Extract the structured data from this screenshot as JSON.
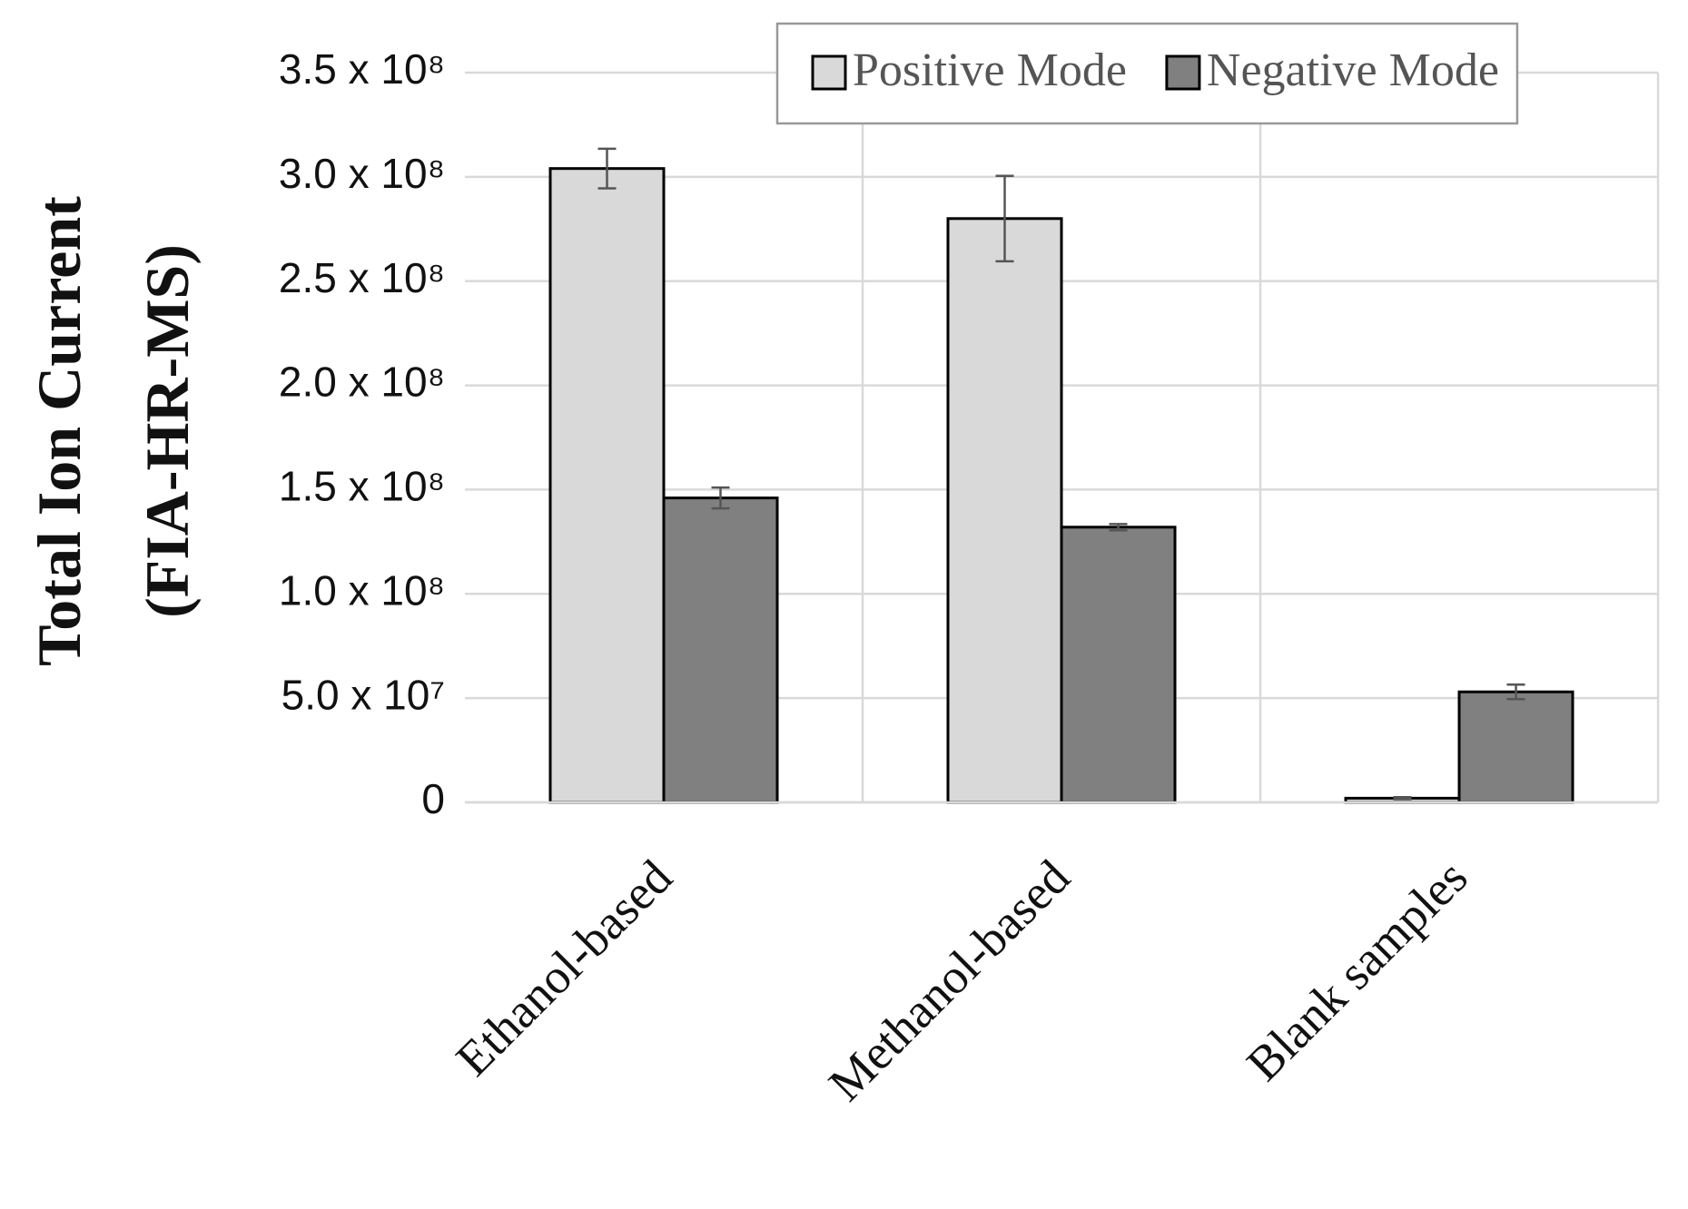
{
  "chart_data": {
    "type": "bar",
    "y_label_lines": [
      "Total Ion Current",
      "(FIA-HR-MS)"
    ],
    "categories": [
      "Ethanol-based",
      "Methanol-based",
      "Blank samples"
    ],
    "series": [
      {
        "name": "Positive Mode",
        "color": "#d9d9d9",
        "values": [
          304000000,
          280000000,
          2000000
        ],
        "errors": [
          9500000,
          20500000,
          500000
        ]
      },
      {
        "name": "Negative Mode",
        "color": "#808080",
        "values": [
          146000000,
          132000000,
          53000000
        ],
        "errors": [
          5000000,
          1500000,
          3500000
        ]
      }
    ],
    "ylim": [
      0,
      350000000
    ],
    "yticks": [
      0,
      {
        "value": 50000000,
        "label": "5.0 x 10⁷"
      },
      {
        "value": 100000000,
        "label": "1.0 x 10⁸"
      },
      {
        "value": 150000000,
        "label": "1.5 x 10⁸"
      },
      {
        "value": 200000000,
        "label": "2.0 x 10⁸"
      },
      {
        "value": 250000000,
        "label": "2.5 x 10⁸"
      },
      {
        "value": 300000000,
        "label": "3.0 x 10⁸"
      },
      {
        "value": 350000000,
        "label": "3.5 x 10⁸"
      }
    ],
    "grid": true,
    "legend": "top-right"
  }
}
